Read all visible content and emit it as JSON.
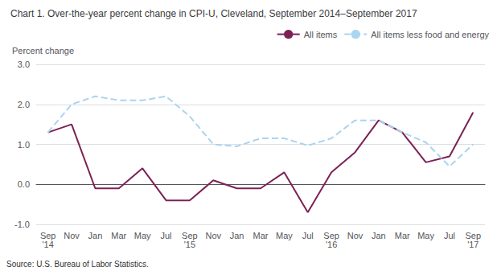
{
  "chart_data": {
    "type": "line",
    "title": "Chart 1. Over-the-year percent change in CPI-U, Cleveland, September 2014–September 2017",
    "ylabel": "Percent change",
    "source": "Source: U.S. Bureau of Labor Statistics.",
    "categories": [
      "Sep\n'14",
      "Nov",
      "Jan",
      "Mar",
      "May",
      "Jul",
      "Sep\n'15",
      "Nov",
      "Jan",
      "Mar",
      "May",
      "Jul",
      "Sep\n'16",
      "Nov",
      "Jan",
      "Mar",
      "May",
      "Jul",
      "Sep\n'17"
    ],
    "series": [
      {
        "name": "All items",
        "color": "#7b2155",
        "line_style": "solid",
        "values": [
          1.3,
          1.5,
          -0.1,
          -0.1,
          0.4,
          -0.4,
          -0.4,
          0.1,
          -0.1,
          -0.1,
          0.3,
          -0.7,
          0.3,
          0.8,
          1.6,
          1.3,
          0.55,
          0.7,
          1.8
        ]
      },
      {
        "name": "All items less food and energy",
        "color": "#aad4f0",
        "line_style": "dashed",
        "values": [
          1.3,
          2.0,
          2.2,
          2.1,
          2.1,
          2.2,
          1.7,
          1.0,
          0.95,
          1.15,
          1.15,
          0.97,
          1.15,
          1.6,
          1.6,
          1.3,
          1.05,
          0.45,
          1.0
        ]
      }
    ],
    "ylim": [
      -1.0,
      3.0
    ],
    "yticks": [
      {
        "value": -1.0,
        "label": "-1.0"
      },
      {
        "value": 0.0,
        "label": "0.0"
      },
      {
        "value": 1.0,
        "label": "1.0"
      },
      {
        "value": 2.0,
        "label": "2.0"
      },
      {
        "value": 3.0,
        "label": "3.0"
      }
    ],
    "grid": true,
    "legend": "upper right"
  }
}
